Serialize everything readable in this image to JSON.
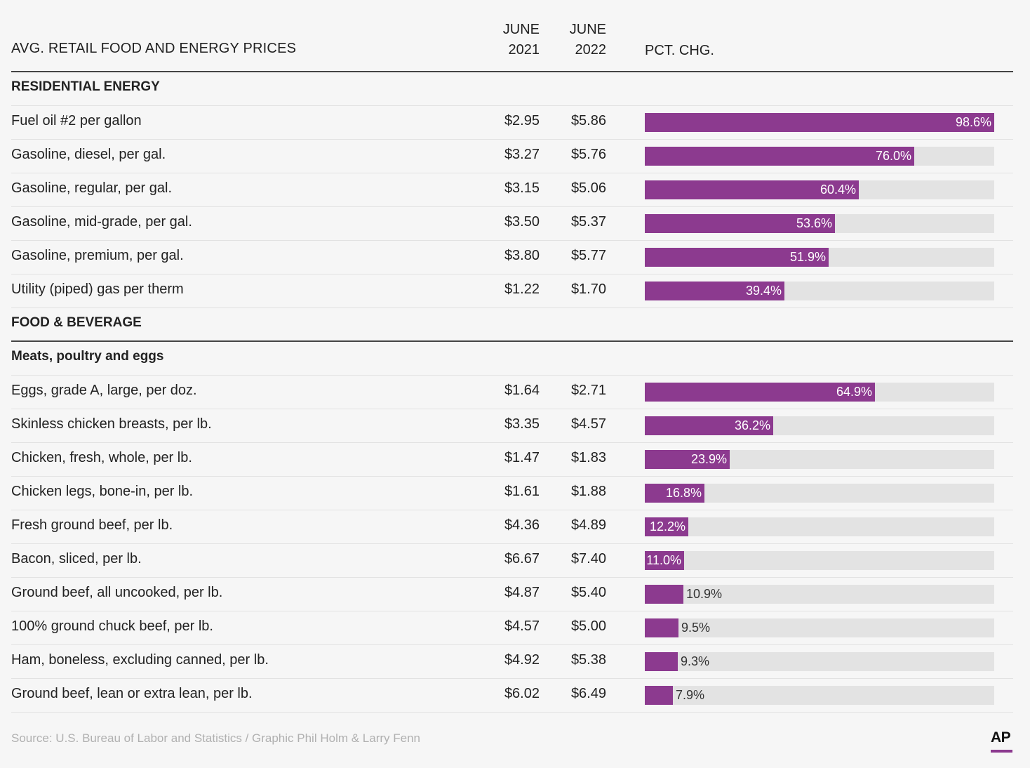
{
  "header": {
    "title": "AVG. RETAIL FOOD AND ENERGY PRICES",
    "col1": [
      "JUNE",
      "2021"
    ],
    "col2": [
      "JUNE",
      "2022"
    ],
    "col3": "PCT. CHG."
  },
  "accent_color": "#8c3a8f",
  "chart_data": {
    "type": "bar",
    "title": "AVG. RETAIL FOOD AND ENERGY PRICES",
    "xlim": [
      0,
      98.6
    ],
    "rows": [
      {
        "kind": "section",
        "label": "RESIDENTIAL ENERGY"
      },
      {
        "kind": "item",
        "label": "Fuel oil #2 per gallon",
        "june2021": "$2.95",
        "june2022": "$5.86",
        "pct": 98.6,
        "pct_label": "98.6%"
      },
      {
        "kind": "item",
        "label": "Gasoline, diesel, per gal.",
        "june2021": "$3.27",
        "june2022": "$5.76",
        "pct": 76.0,
        "pct_label": "76.0%"
      },
      {
        "kind": "item",
        "label": "Gasoline, regular, per gal.",
        "june2021": "$3.15",
        "june2022": "$5.06",
        "pct": 60.4,
        "pct_label": "60.4%"
      },
      {
        "kind": "item",
        "label": "Gasoline, mid-grade, per gal.",
        "june2021": "$3.50",
        "june2022": "$5.37",
        "pct": 53.6,
        "pct_label": "53.6%"
      },
      {
        "kind": "item",
        "label": "Gasoline, premium, per gal.",
        "june2021": "$3.80",
        "june2022": "$5.77",
        "pct": 51.9,
        "pct_label": "51.9%"
      },
      {
        "kind": "item",
        "label": "Utility (piped) gas per therm",
        "june2021": "$1.22",
        "june2022": "$1.70",
        "pct": 39.4,
        "pct_label": "39.4%"
      },
      {
        "kind": "section",
        "label": "FOOD & BEVERAGE",
        "major": true
      },
      {
        "kind": "subsection",
        "label": "Meats, poultry and eggs"
      },
      {
        "kind": "item",
        "label": "Eggs, grade A, large, per doz.",
        "june2021": "$1.64",
        "june2022": "$2.71",
        "pct": 64.9,
        "pct_label": "64.9%"
      },
      {
        "kind": "item",
        "label": "Skinless chicken breasts, per lb.",
        "june2021": "$3.35",
        "june2022": "$4.57",
        "pct": 36.2,
        "pct_label": "36.2%"
      },
      {
        "kind": "item",
        "label": "Chicken, fresh, whole, per lb.",
        "june2021": "$1.47",
        "june2022": "$1.83",
        "pct": 23.9,
        "pct_label": "23.9%"
      },
      {
        "kind": "item",
        "label": "Chicken legs, bone-in, per lb.",
        "june2021": "$1.61",
        "june2022": "$1.88",
        "pct": 16.8,
        "pct_label": "16.8%"
      },
      {
        "kind": "item",
        "label": "Fresh ground beef, per lb.",
        "june2021": "$4.36",
        "june2022": "$4.89",
        "pct": 12.2,
        "pct_label": "12.2%"
      },
      {
        "kind": "item",
        "label": "Bacon, sliced, per lb.",
        "june2021": "$6.67",
        "june2022": "$7.40",
        "pct": 11.0,
        "pct_label": "11.0%"
      },
      {
        "kind": "item",
        "label": "Ground beef, all uncooked, per lb.",
        "june2021": "$4.87",
        "june2022": "$5.40",
        "pct": 10.9,
        "pct_label": "10.9%",
        "label_outside": true
      },
      {
        "kind": "item",
        "label": "100% ground chuck beef, per lb.",
        "june2021": "$4.57",
        "june2022": "$5.00",
        "pct": 9.5,
        "pct_label": "9.5%",
        "label_outside": true
      },
      {
        "kind": "item",
        "label": "Ham, boneless, excluding canned, per lb.",
        "june2021": "$4.92",
        "june2022": "$5.38",
        "pct": 9.3,
        "pct_label": "9.3%",
        "label_outside": true
      },
      {
        "kind": "item",
        "label": "Ground beef, lean or extra lean, per lb.",
        "june2021": "$6.02",
        "june2022": "$6.49",
        "pct": 7.9,
        "pct_label": "7.9%",
        "label_outside": true
      }
    ]
  },
  "footer": {
    "source": "Source: U.S. Bureau of Labor and Statistics / Graphic Phil Holm & Larry Fenn",
    "logo": "AP"
  }
}
